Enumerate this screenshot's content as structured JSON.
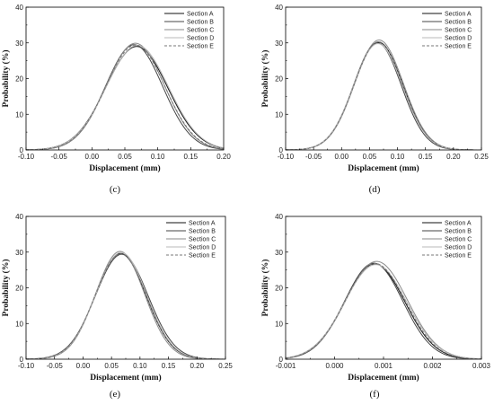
{
  "chart_data": [
    {
      "type": "line",
      "caption": "(c)",
      "xlabel": "Displacement (mm)",
      "ylabel": "Probability (%)",
      "xlim": [
        -0.1,
        0.2
      ],
      "ylim": [
        0,
        40
      ],
      "xticks": [
        "-0.10",
        "-0.05",
        "0.00",
        "0.05",
        "0.10",
        "0.15",
        "0.20"
      ],
      "yticks": [
        "0",
        "10",
        "20",
        "30",
        "40"
      ],
      "legend_position": "top-right",
      "series": [
        {
          "name": "Section A",
          "mean": 0.068,
          "peak": 29.0,
          "color": "#111111",
          "dash": ""
        },
        {
          "name": "Section B",
          "mean": 0.064,
          "peak": 29.5,
          "color": "#444444",
          "dash": ""
        },
        {
          "name": "Section C",
          "mean": 0.066,
          "peak": 29.9,
          "color": "#8a8a8a",
          "dash": ""
        },
        {
          "name": "Section D",
          "mean": 0.069,
          "peak": 29.3,
          "color": "#b8b8b8",
          "dash": ""
        },
        {
          "name": "Section E",
          "mean": 0.066,
          "peak": 29.4,
          "color": "#777777",
          "dash": "3,2"
        }
      ]
    },
    {
      "type": "line",
      "caption": "(d)",
      "xlabel": "Displacement (mm)",
      "ylabel": "Probability (%)",
      "xlim": [
        -0.1,
        0.25
      ],
      "ylim": [
        0,
        40
      ],
      "xticks": [
        "-0.10",
        "-0.05",
        "0.00",
        "0.05",
        "0.10",
        "0.15",
        "0.20",
        "0.25"
      ],
      "yticks": [
        "0",
        "10",
        "20",
        "30",
        "40"
      ],
      "legend_position": "top-right",
      "series": [
        {
          "name": "Section A",
          "mean": 0.066,
          "peak": 30.2,
          "color": "#111111",
          "dash": ""
        },
        {
          "name": "Section B",
          "mean": 0.064,
          "peak": 30.0,
          "color": "#444444",
          "dash": ""
        },
        {
          "name": "Section C",
          "mean": 0.067,
          "peak": 30.8,
          "color": "#8a8a8a",
          "dash": ""
        },
        {
          "name": "Section D",
          "mean": 0.065,
          "peak": 29.8,
          "color": "#b8b8b8",
          "dash": ""
        },
        {
          "name": "Section E",
          "mean": 0.066,
          "peak": 30.3,
          "color": "#777777",
          "dash": "3,2"
        }
      ]
    },
    {
      "type": "line",
      "caption": "(e)",
      "xlabel": "Displacement (mm)",
      "ylabel": "Probability (%)",
      "xlim": [
        -0.1,
        0.25
      ],
      "ylim": [
        0,
        40
      ],
      "xticks": [
        "-0.10",
        "-0.05",
        "0.00",
        "0.05",
        "0.10",
        "0.15",
        "0.20",
        "0.25"
      ],
      "yticks": [
        "0",
        "10",
        "20",
        "30",
        "40"
      ],
      "legend_position": "top-right",
      "series": [
        {
          "name": "Section A",
          "mean": 0.066,
          "peak": 29.6,
          "color": "#111111",
          "dash": ""
        },
        {
          "name": "Section B",
          "mean": 0.068,
          "peak": 29.4,
          "color": "#444444",
          "dash": ""
        },
        {
          "name": "Section C",
          "mean": 0.065,
          "peak": 30.2,
          "color": "#8a8a8a",
          "dash": ""
        },
        {
          "name": "Section D",
          "mean": 0.067,
          "peak": 29.9,
          "color": "#b8b8b8",
          "dash": ""
        },
        {
          "name": "Section E",
          "mean": 0.066,
          "peak": 29.5,
          "color": "#777777",
          "dash": "3,2"
        }
      ]
    },
    {
      "type": "line",
      "caption": "(f)",
      "xlabel": "Displacement (mm)",
      "ylabel": "Probability (%)",
      "xlim": [
        -0.001,
        0.003
      ],
      "ylim": [
        0,
        40
      ],
      "xticks": [
        "-0.001",
        "0.000",
        "0.001",
        "0.002",
        "0.003"
      ],
      "yticks": [
        "0",
        "10",
        "20",
        "30",
        "40"
      ],
      "legend_position": "top-right",
      "series": [
        {
          "name": "Section A",
          "mean": 0.00082,
          "peak": 26.7,
          "color": "#111111",
          "dash": ""
        },
        {
          "name": "Section B",
          "mean": 0.0008,
          "peak": 26.9,
          "color": "#444444",
          "dash": ""
        },
        {
          "name": "Section C",
          "mean": 0.00086,
          "peak": 27.4,
          "color": "#8a8a8a",
          "dash": ""
        },
        {
          "name": "Section D",
          "mean": 0.00084,
          "peak": 26.5,
          "color": "#b8b8b8",
          "dash": ""
        },
        {
          "name": "Section E",
          "mean": 0.00083,
          "peak": 26.8,
          "color": "#777777",
          "dash": "3,2"
        }
      ]
    }
  ]
}
